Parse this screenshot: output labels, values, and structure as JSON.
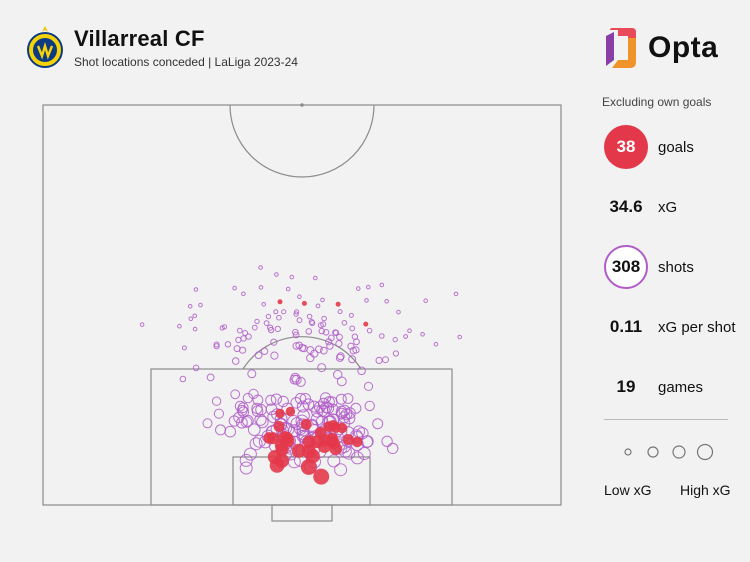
{
  "header": {
    "club_name": "Villarreal CF",
    "subtitle": "Shot locations conceded | LaLiga 2023-24"
  },
  "brand": {
    "name": "Opta",
    "colors": {
      "top": "#e94b5a",
      "bottom": "#f0932b",
      "side": "#8a3ea8"
    }
  },
  "stats": {
    "note": "Excluding own goals",
    "goals_value": "38",
    "goals_label": "goals",
    "xg_value": "34.6",
    "xg_label": "xG",
    "shots_value": "308",
    "shots_label": "shots",
    "xgps_value": "0.11",
    "xgps_label": "xG per shot",
    "games_value": "19",
    "games_label": "games"
  },
  "legend": {
    "low_label": "Low xG",
    "high_label": "High xG"
  },
  "colors": {
    "goal": "#e3384a",
    "shot": "#b05cc9",
    "pitch_line": "#8c8c8c",
    "background": "#f2f2f2"
  },
  "chart_data": {
    "type": "scatter",
    "series": [
      {
        "name": "goals",
        "count": 38
      },
      {
        "name": "shots",
        "count": 308
      }
    ],
    "totals": {
      "xg": 34.6,
      "shots": 308,
      "goals": 38,
      "xg_per_shot": 0.11,
      "games": 19
    }
  }
}
